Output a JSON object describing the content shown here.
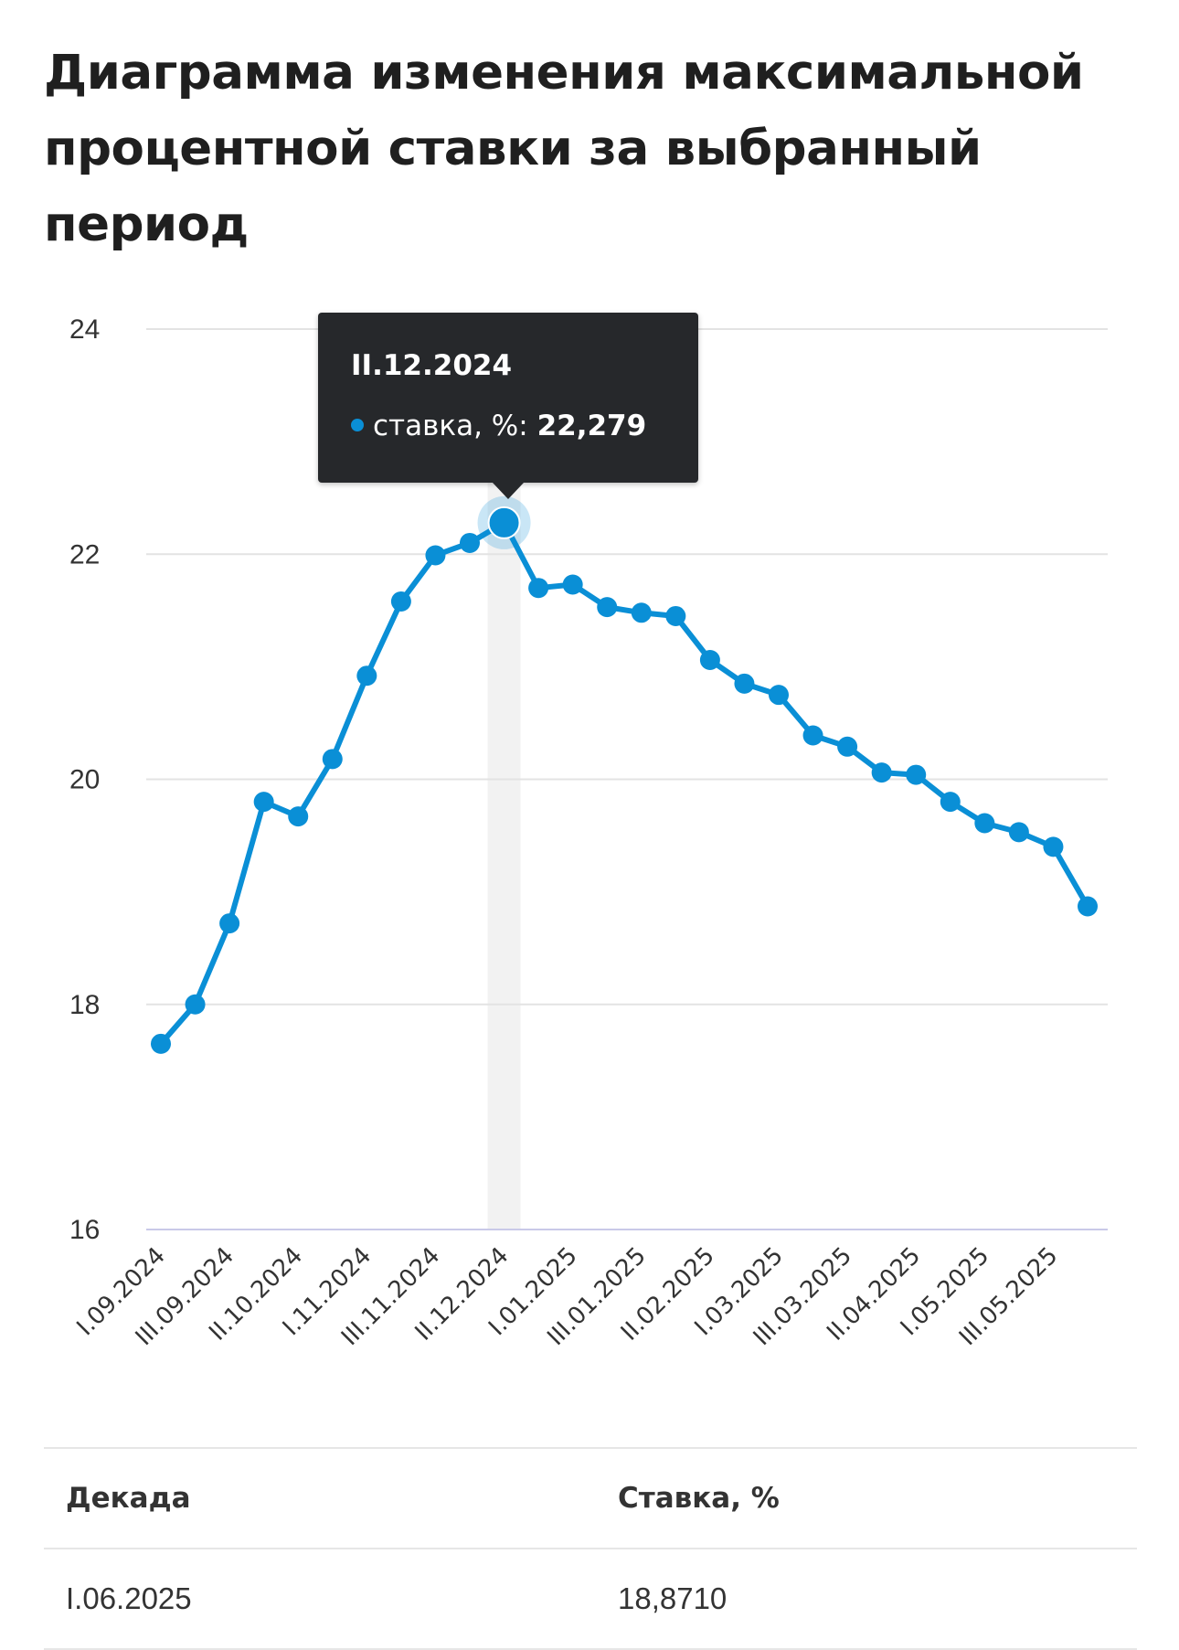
{
  "title": "Диаграмма изменения максимальной процентной ставки за выбранный период",
  "colors": {
    "series": "#0a8fd6",
    "grid": "#e3e3e3",
    "baseline": "#c9c9e8",
    "highlight_band": "#f2f2f2",
    "tooltip_bg": "#26282b"
  },
  "tooltip": {
    "date": "II.12.2024",
    "series_label": "ставка, %:",
    "value": "22,279"
  },
  "chart_data": {
    "type": "line",
    "title": "",
    "xlabel": "",
    "ylabel": "",
    "ylim": [
      16,
      24
    ],
    "yticks": [
      "16",
      "18",
      "20",
      "22",
      "24"
    ],
    "grid": true,
    "highlighted_index": 10,
    "x": [
      "I.09.2024",
      "II.09.2024",
      "III.09.2024",
      "I.10.2024",
      "II.10.2024",
      "III.10.2024",
      "I.11.2024",
      "II.11.2024",
      "III.11.2024",
      "I.12.2024",
      "II.12.2024",
      "III.12.2024",
      "I.01.2025",
      "II.01.2025",
      "III.01.2025",
      "I.02.2025",
      "II.02.2025",
      "III.02.2025",
      "I.03.2025",
      "II.03.2025",
      "III.03.2025",
      "I.04.2025",
      "II.04.2025",
      "III.04.2025",
      "I.05.2025",
      "II.05.2025",
      "III.05.2025",
      "I.06.2025"
    ],
    "xtick_labels": [
      "I.09.2024",
      "III.09.2024",
      "II.10.2024",
      "I.11.2024",
      "III.11.2024",
      "II.12.2024",
      "I.01.2025",
      "III.01.2025",
      "II.02.2025",
      "I.03.2025",
      "III.03.2025",
      "II.04.2025",
      "I.05.2025",
      "III.05.2025"
    ],
    "series": [
      {
        "name": "ставка, %",
        "values": [
          17.65,
          18.0,
          18.72,
          19.8,
          19.67,
          20.18,
          20.92,
          21.58,
          21.99,
          22.1,
          22.279,
          21.7,
          21.73,
          21.53,
          21.48,
          21.45,
          21.06,
          20.85,
          20.75,
          20.39,
          20.29,
          20.06,
          20.04,
          19.8,
          19.61,
          19.53,
          19.4,
          18.871
        ]
      }
    ]
  },
  "table": {
    "headers": [
      "Декада",
      "Ставка, %"
    ],
    "rows": [
      [
        "I.06.2025",
        "18,8710"
      ]
    ]
  }
}
